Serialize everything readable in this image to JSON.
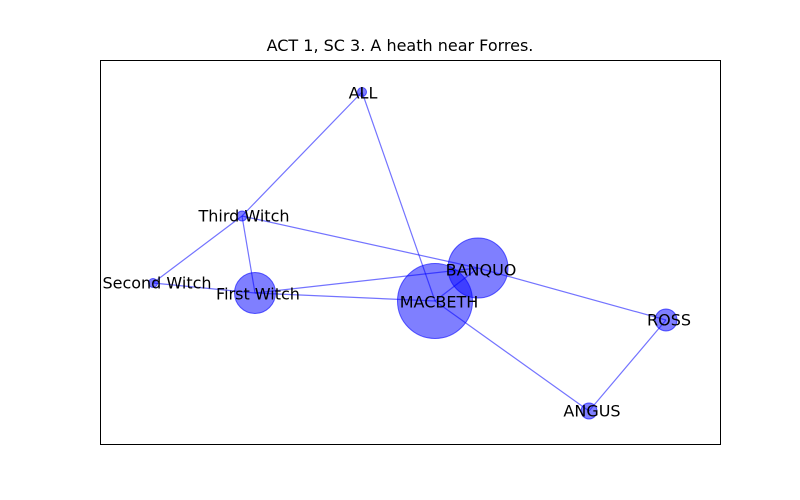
{
  "title": "ACT 1, SC 3. A heath near Forres.",
  "colors": {
    "node": "#0000ff",
    "edge": "#0000ff",
    "frame": "#000000"
  },
  "nodes": [
    {
      "id": "ALL",
      "label": "ALL",
      "weight": 1
    },
    {
      "id": "THIRD",
      "label": "Third Witch",
      "weight": 1
    },
    {
      "id": "SECOND",
      "label": "Second Witch",
      "weight": 1
    },
    {
      "id": "FIRST",
      "label": "First Witch",
      "weight": 7
    },
    {
      "id": "BANQUO",
      "label": "BANQUO",
      "weight": 14
    },
    {
      "id": "MACBETH",
      "label": "MACBETH",
      "weight": 23
    },
    {
      "id": "ROSS",
      "label": "ROSS",
      "weight": 2
    },
    {
      "id": "ANGUS",
      "label": "ANGUS",
      "weight": 1.5
    }
  ],
  "edges": [
    [
      "ALL",
      "THIRD"
    ],
    [
      "ALL",
      "MACBETH"
    ],
    [
      "THIRD",
      "SECOND"
    ],
    [
      "THIRD",
      "FIRST"
    ],
    [
      "THIRD",
      "BANQUO"
    ],
    [
      "SECOND",
      "FIRST"
    ],
    [
      "FIRST",
      "MACBETH"
    ],
    [
      "FIRST",
      "BANQUO"
    ],
    [
      "BANQUO",
      "ROSS"
    ],
    [
      "BANQUO",
      "MACBETH"
    ],
    [
      "MACBETH",
      "ANGUS"
    ],
    [
      "ROSS",
      "ANGUS"
    ]
  ]
}
